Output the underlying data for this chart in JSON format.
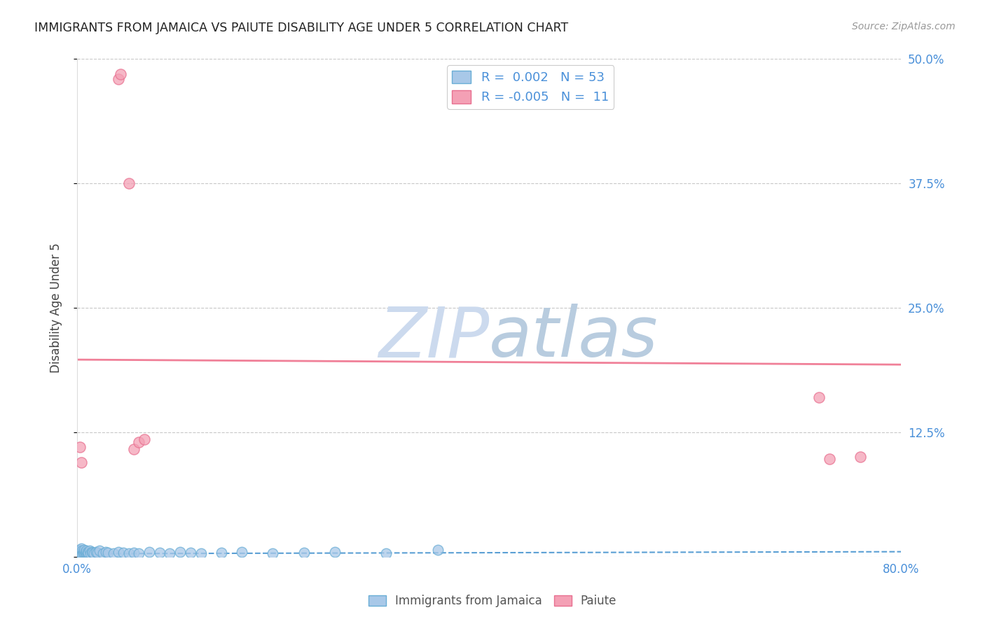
{
  "title": "IMMIGRANTS FROM JAMAICA VS PAIUTE DISABILITY AGE UNDER 5 CORRELATION CHART",
  "source": "Source: ZipAtlas.com",
  "ylabel": "Disability Age Under 5",
  "xlim": [
    0.0,
    0.8
  ],
  "ylim": [
    0.0,
    0.5
  ],
  "xticks": [
    0.0,
    0.2,
    0.4,
    0.6,
    0.8
  ],
  "xticklabels": [
    "0.0%",
    "",
    "",
    "",
    "80.0%"
  ],
  "ytick_positions": [
    0.0,
    0.125,
    0.25,
    0.375,
    0.5
  ],
  "yticklabels": [
    "",
    "12.5%",
    "25.0%",
    "37.5%",
    "50.0%"
  ],
  "blue_R": "0.002",
  "blue_N": "53",
  "pink_R": "-0.005",
  "pink_N": "11",
  "blue_color": "#a8c8e8",
  "pink_color": "#f4a0b5",
  "blue_edge_color": "#6aaed6",
  "pink_edge_color": "#e87090",
  "blue_trend_color": "#5a9fd4",
  "pink_trend_color": "#f08098",
  "tick_label_color": "#4a90d9",
  "grid_color": "#c8c8c8",
  "background_color": "#ffffff",
  "blue_scatter_x": [
    0.001,
    0.002,
    0.002,
    0.003,
    0.003,
    0.003,
    0.004,
    0.004,
    0.004,
    0.005,
    0.005,
    0.005,
    0.006,
    0.006,
    0.007,
    0.007,
    0.008,
    0.008,
    0.009,
    0.009,
    0.01,
    0.01,
    0.011,
    0.012,
    0.013,
    0.014,
    0.015,
    0.016,
    0.018,
    0.02,
    0.022,
    0.025,
    0.028,
    0.03,
    0.035,
    0.04,
    0.045,
    0.05,
    0.055,
    0.06,
    0.07,
    0.08,
    0.09,
    0.1,
    0.11,
    0.12,
    0.14,
    0.16,
    0.19,
    0.22,
    0.25,
    0.3,
    0.35
  ],
  "blue_scatter_y": [
    0.004,
    0.005,
    0.003,
    0.006,
    0.004,
    0.007,
    0.003,
    0.005,
    0.008,
    0.004,
    0.006,
    0.002,
    0.005,
    0.003,
    0.004,
    0.007,
    0.003,
    0.005,
    0.004,
    0.006,
    0.003,
    0.005,
    0.004,
    0.006,
    0.003,
    0.005,
    0.004,
    0.003,
    0.005,
    0.004,
    0.006,
    0.003,
    0.005,
    0.004,
    0.003,
    0.005,
    0.004,
    0.003,
    0.004,
    0.003,
    0.005,
    0.004,
    0.003,
    0.005,
    0.004,
    0.003,
    0.004,
    0.005,
    0.003,
    0.004,
    0.005,
    0.003,
    0.007
  ],
  "pink_scatter_x": [
    0.003,
    0.004,
    0.04,
    0.042,
    0.05,
    0.055,
    0.06,
    0.065,
    0.72,
    0.73,
    0.76
  ],
  "pink_scatter_y": [
    0.11,
    0.095,
    0.48,
    0.485,
    0.375,
    0.108,
    0.115,
    0.118,
    0.16,
    0.098,
    0.1
  ],
  "blue_trend_x": [
    0.0,
    0.8
  ],
  "blue_trend_y": [
    0.003,
    0.005
  ],
  "pink_trend_x": [
    0.0,
    0.8
  ],
  "pink_trend_y": [
    0.198,
    0.193
  ]
}
